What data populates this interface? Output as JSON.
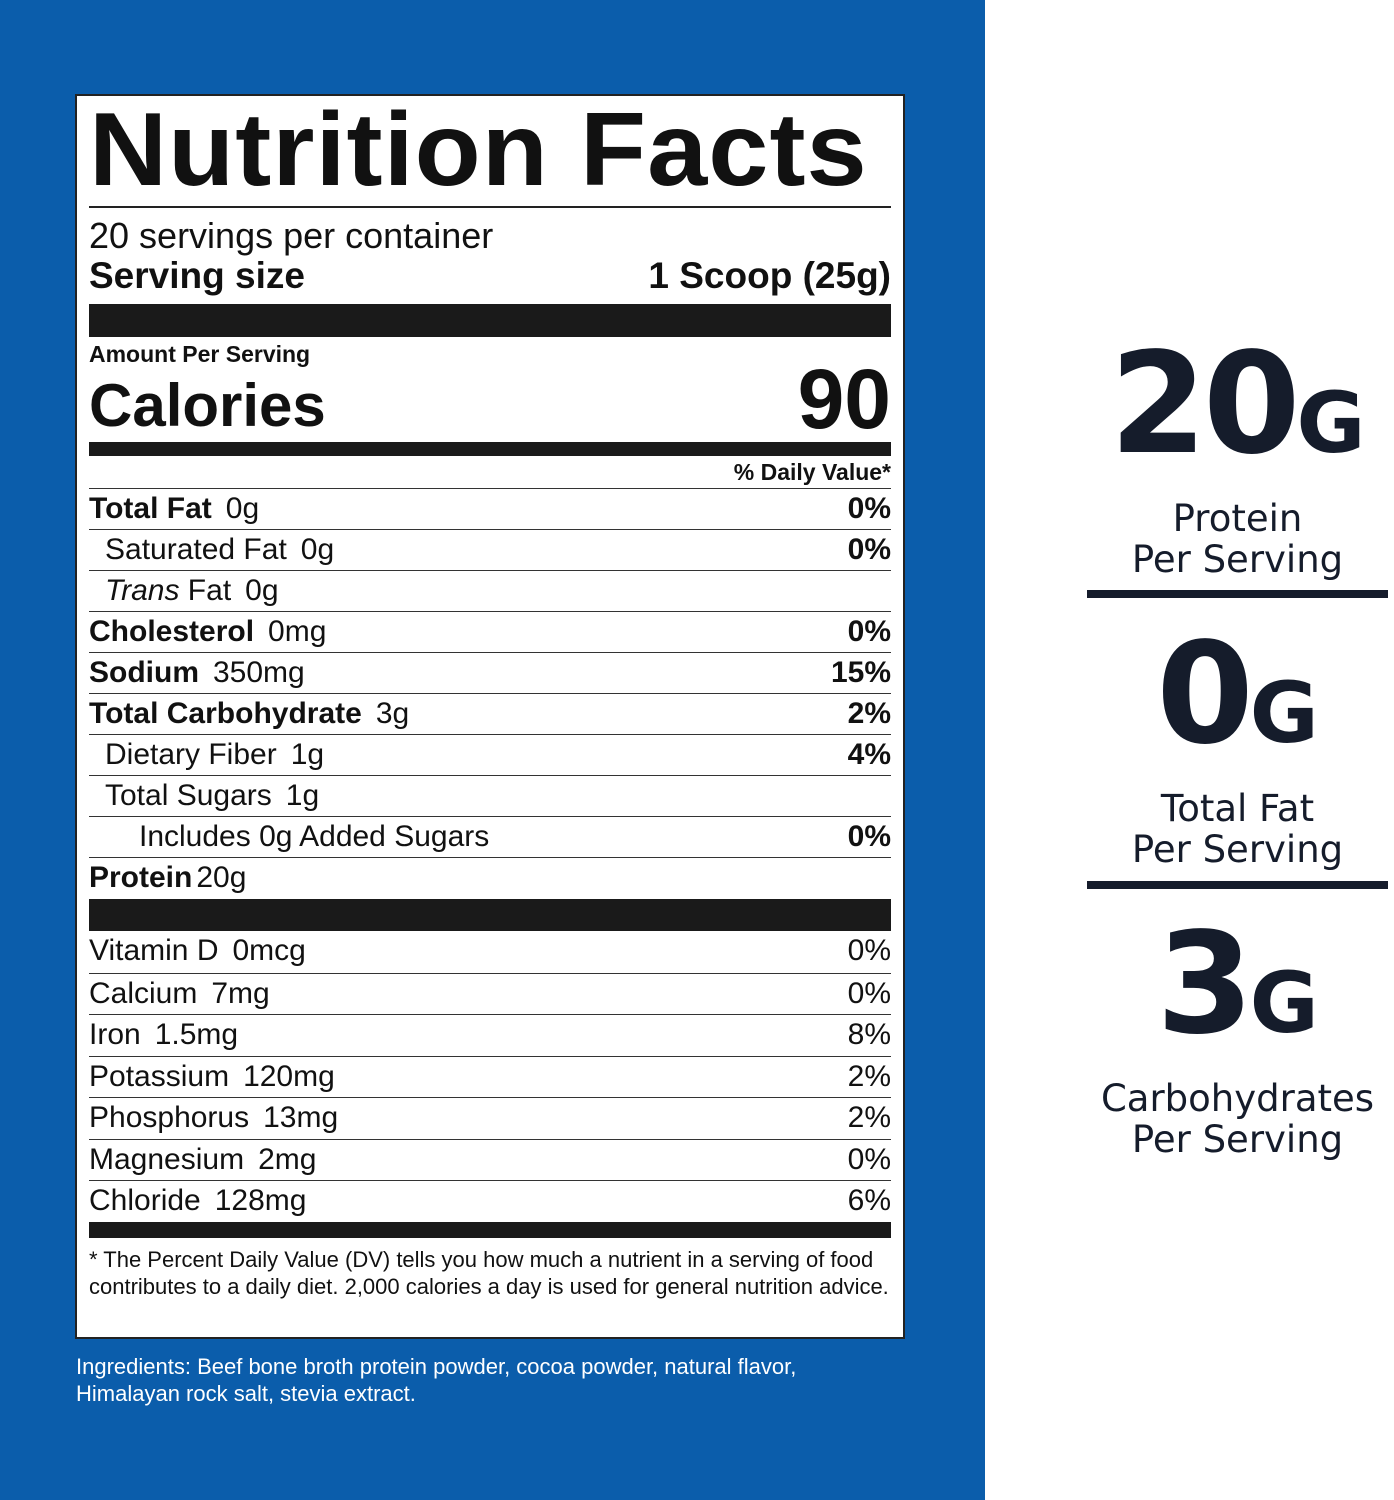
{
  "colors": {
    "panel_blue": "#0b5dab",
    "navy": "#151c2b"
  },
  "label": {
    "title": "Nutrition Facts",
    "servings": "20 servings per container",
    "serving_size_label": "Serving size",
    "serving_size_value": "1 Scoop (25g)",
    "amount_per_serving": "Amount Per Serving",
    "calories_label": "Calories",
    "calories_value": "90",
    "dv_header": "% Daily Value*",
    "nutrients": [
      {
        "name": "Total Fat",
        "amount": "0g",
        "dv": "0%"
      },
      {
        "name": "Saturated Fat",
        "amount": "0g",
        "dv": "0%"
      },
      {
        "italic": "Trans",
        "name": " Fat",
        "amount": "0g",
        "dv": ""
      },
      {
        "name": "Cholesterol",
        "amount": "0mg",
        "dv": "0%"
      },
      {
        "name": "Sodium",
        "amount": "350mg",
        "dv": "15%"
      },
      {
        "name": "Total Carbohydrate",
        "amount": "3g",
        "dv": "2%"
      },
      {
        "name": "Dietary Fiber",
        "amount": "1g",
        "dv": "4%"
      },
      {
        "name": "Total Sugars",
        "amount": "1g",
        "dv": ""
      },
      {
        "name": "Includes 0g Added Sugars",
        "amount": "",
        "dv": "0%"
      },
      {
        "name": "Protein",
        "amount": "20g",
        "dv": ""
      }
    ],
    "vitamins": [
      {
        "name": "Vitamin D",
        "amount": "0mcg",
        "dv": "0%"
      },
      {
        "name": "Calcium",
        "amount": "7mg",
        "dv": "0%"
      },
      {
        "name": "Iron",
        "amount": "1.5mg",
        "dv": "8%"
      },
      {
        "name": "Potassium",
        "amount": "120mg",
        "dv": "2%"
      },
      {
        "name": "Phosphorus",
        "amount": "13mg",
        "dv": "2%"
      },
      {
        "name": "Magnesium",
        "amount": "2mg",
        "dv": "0%"
      },
      {
        "name": "Chloride",
        "amount": "128mg",
        "dv": "6%"
      }
    ],
    "footnote": "* The Percent Daily Value (DV) tells you how much a nutrient in a serving of food contributes to a daily diet. 2,000 calories a day is used for general nutrition advice."
  },
  "ingredients": "Ingredients: Beef bone broth protein powder, cocoa powder, natural flavor, Himalayan rock salt, stevia extract.",
  "stats": [
    {
      "number": "20",
      "unit": "G",
      "line1": "Protein",
      "line2": "Per Serving"
    },
    {
      "number": "0",
      "unit": "G",
      "line1": "Total Fat",
      "line2": "Per Serving"
    },
    {
      "number": "3",
      "unit": "G",
      "line1": "Carbohydrates",
      "line2": "Per Serving"
    }
  ]
}
